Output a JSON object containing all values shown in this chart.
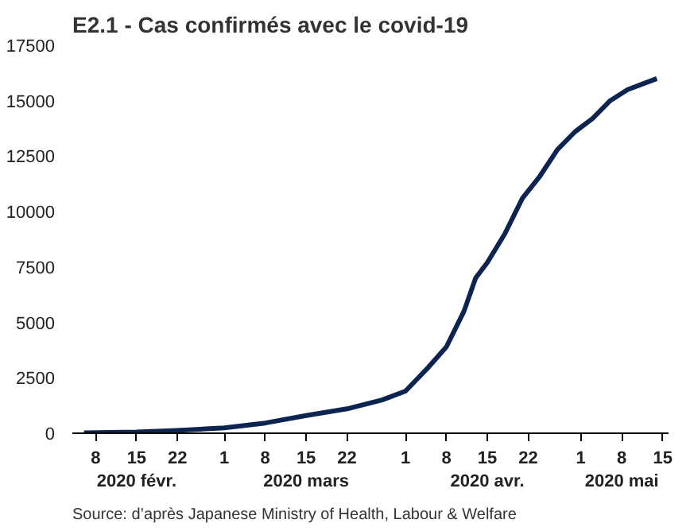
{
  "chart_data": {
    "type": "line",
    "title": "E2.1 - Cas confirmés avec le covid-19",
    "x": [
      "2020-02-06",
      "2020-02-15",
      "2020-02-22",
      "2020-03-01",
      "2020-03-08",
      "2020-03-15",
      "2020-03-22",
      "2020-03-28",
      "2020-04-01",
      "2020-04-05",
      "2020-04-08",
      "2020-04-11",
      "2020-04-13",
      "2020-04-15",
      "2020-04-18",
      "2020-04-21",
      "2020-04-24",
      "2020-04-27",
      "2020-04-30",
      "2020-05-03",
      "2020-05-06",
      "2020-05-09",
      "2020-05-12",
      "2020-05-14"
    ],
    "series": [
      {
        "color": "#0d2350",
        "values": [
          20,
          50,
          130,
          240,
          460,
          800,
          1100,
          1500,
          1900,
          3000,
          3900,
          5500,
          7000,
          7700,
          9000,
          10600,
          11600,
          12800,
          13600,
          14200,
          15000,
          15500,
          15800,
          16000
        ]
      }
    ],
    "xlim": [
      "2020-02-04",
      "2020-05-16"
    ],
    "xticks": [
      {
        "value": "2020-02-08",
        "label": "8"
      },
      {
        "value": "2020-02-15",
        "label": "15\n2020 févr."
      },
      {
        "value": "2020-02-22",
        "label": "22"
      },
      {
        "value": "2020-03-01",
        "label": "1"
      },
      {
        "value": "2020-03-08",
        "label": "8"
      },
      {
        "value": "2020-03-15",
        "label": "15\n2020 mars"
      },
      {
        "value": "2020-03-22",
        "label": "22"
      },
      {
        "value": "2020-04-01",
        "label": "1"
      },
      {
        "value": "2020-04-08",
        "label": "8"
      },
      {
        "value": "2020-04-15",
        "label": "15\n2020 avr."
      },
      {
        "value": "2020-04-22",
        "label": "22"
      },
      {
        "value": "2020-05-01",
        "label": "1"
      },
      {
        "value": "2020-05-08",
        "label": "8\n2020 mai"
      },
      {
        "value": "2020-05-15",
        "label": "15"
      }
    ],
    "ylim": [
      0,
      17500
    ],
    "yticks": [
      0,
      2500,
      5000,
      7500,
      10000,
      12500,
      15000,
      17500
    ],
    "grid": false,
    "annotations": [
      "Source: d’après Japanese Ministry of Health, Labour & Welfare"
    ]
  }
}
